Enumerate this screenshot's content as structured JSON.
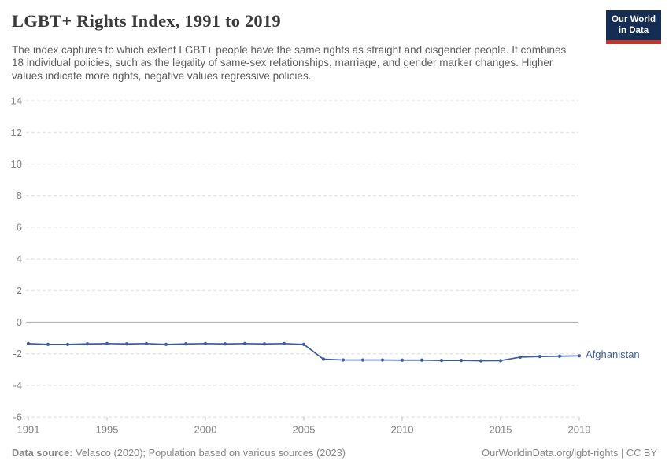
{
  "header": {
    "title": "LGBT+ Rights Index, 1991 to 2019",
    "subtitle": "The index captures to which extent LGBT+ people have the same rights as straight and cisgender people. It combines 18 individual policies, such as the legality of same-sex relationships, marriage, and gender marker changes. Higher values indicate more rights, negative values regressive policies.",
    "logo": {
      "line1": "Our World",
      "line2": "in Data"
    }
  },
  "chart_data": {
    "type": "line",
    "title": "LGBT+ Rights Index, 1991 to 2019",
    "xlabel": "",
    "ylabel": "",
    "xlim": [
      1991,
      2019
    ],
    "ylim": [
      -6,
      14
    ],
    "x_ticks": [
      1991,
      1995,
      2000,
      2005,
      2010,
      2015,
      2019
    ],
    "y_ticks": [
      14,
      12,
      10,
      8,
      6,
      4,
      2,
      0,
      -2,
      -4,
      -6
    ],
    "grid": "horizontal-dashed, solid zero line",
    "legend_position": "label-at-line-end",
    "series": [
      {
        "name": "Afghanistan",
        "color": "#3d5c99",
        "x": [
          1991,
          1992,
          1993,
          1994,
          1995,
          1996,
          1997,
          1998,
          1999,
          2000,
          2001,
          2002,
          2003,
          2004,
          2005,
          2006,
          2007,
          2008,
          2009,
          2010,
          2011,
          2012,
          2013,
          2014,
          2015,
          2016,
          2017,
          2018,
          2019
        ],
        "values": [
          -1.36,
          -1.41,
          -1.41,
          -1.38,
          -1.36,
          -1.38,
          -1.36,
          -1.41,
          -1.38,
          -1.36,
          -1.38,
          -1.36,
          -1.38,
          -1.36,
          -1.41,
          -2.34,
          -2.39,
          -2.39,
          -2.39,
          -2.4,
          -2.4,
          -2.42,
          -2.42,
          -2.44,
          -2.43,
          -2.21,
          -2.17,
          -2.15,
          -2.13
        ]
      }
    ]
  },
  "footer": {
    "datasource_label": "Data source:",
    "datasource_text": " Velasco (2020); Population based on various sources (2023)",
    "link_text": "OurWorldinData.org/lgbt-rights | CC BY"
  },
  "colors": {
    "accent_line": "#3d5c99",
    "grid": "#e0e0e0",
    "zero_line": "#b3b3b3",
    "axis_tick_label": "#818181",
    "logo_bg": "#152d52",
    "logo_accent": "#c0362c"
  }
}
